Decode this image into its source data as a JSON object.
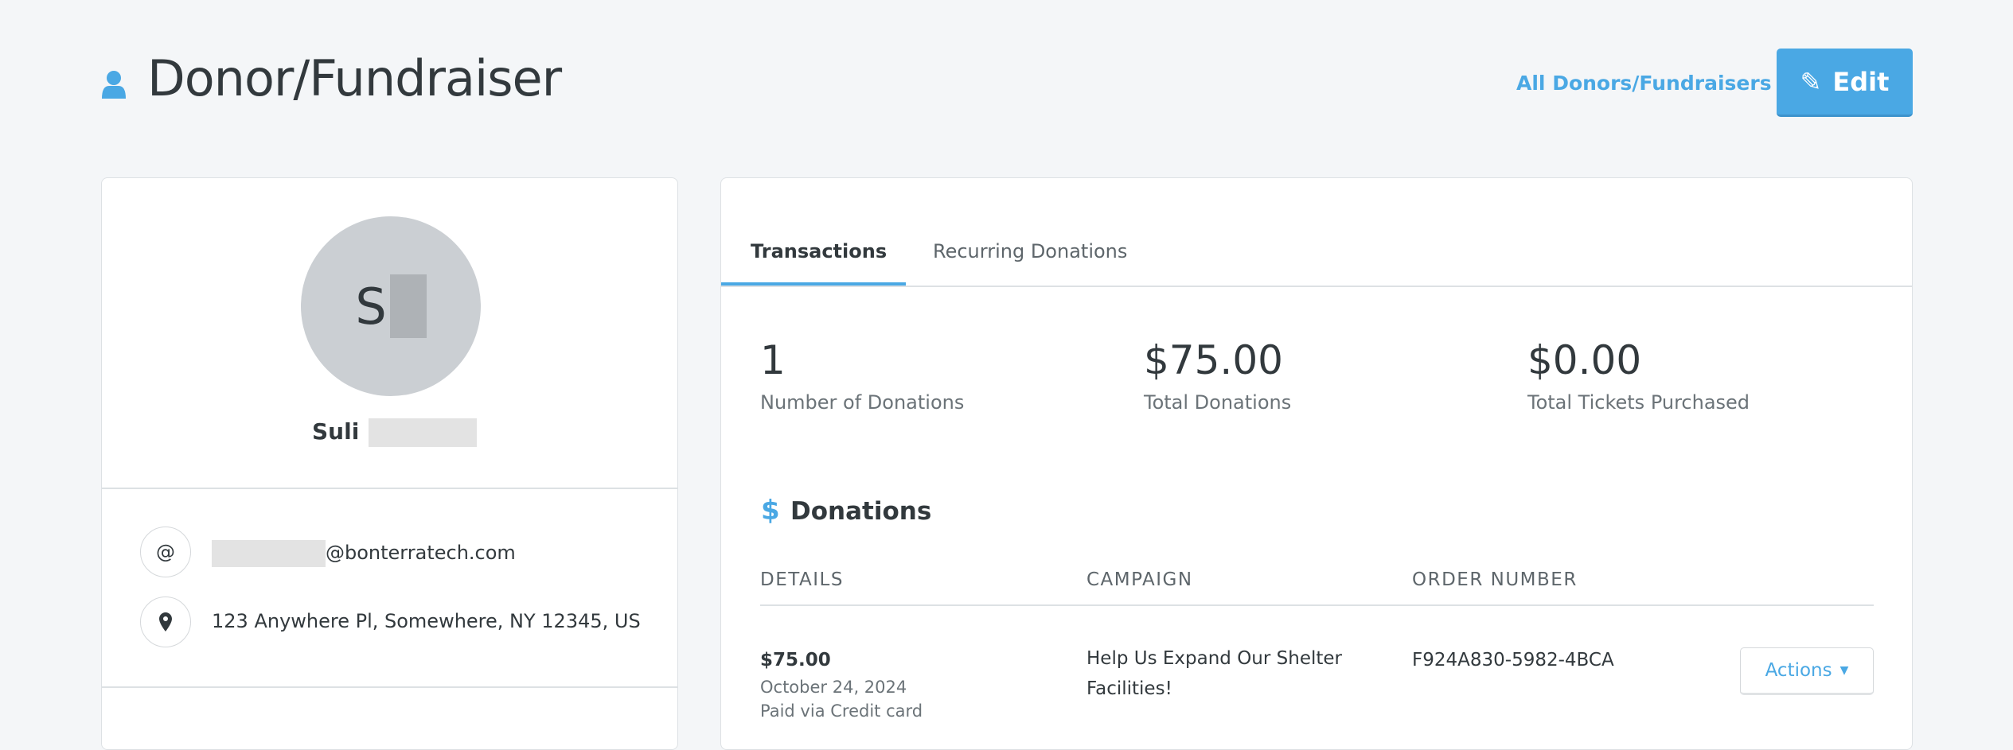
{
  "header": {
    "title": "Donor/Fundraiser",
    "all_link": "All Donors/Fundraisers",
    "edit_label": "Edit",
    "accent": "#4aa8e4"
  },
  "profile": {
    "initial": "S",
    "first_name": "Suli",
    "email_domain": "@bonterratech.com",
    "address": "123 Anywhere Pl, Somewhere, NY 12345, US"
  },
  "tabs": [
    {
      "label": "Transactions",
      "active": true
    },
    {
      "label": "Recurring Donations",
      "active": false
    }
  ],
  "stats": [
    {
      "value": "1",
      "label": "Number of Donations"
    },
    {
      "value": "$75.00",
      "label": "Total Donations"
    },
    {
      "value": "$0.00",
      "label": "Total Tickets Purchased"
    }
  ],
  "donations": {
    "heading": "Donations",
    "columns": [
      "DETAILS",
      "CAMPAIGN",
      "ORDER NUMBER"
    ],
    "rows": [
      {
        "amount": "$75.00",
        "date": "October 24, 2024",
        "payment": "Paid via Credit card",
        "campaign": "Help Us Expand Our Shelter Facilities!",
        "order": "F924A830-5982-4BCA",
        "actions_label": "Actions"
      }
    ]
  }
}
